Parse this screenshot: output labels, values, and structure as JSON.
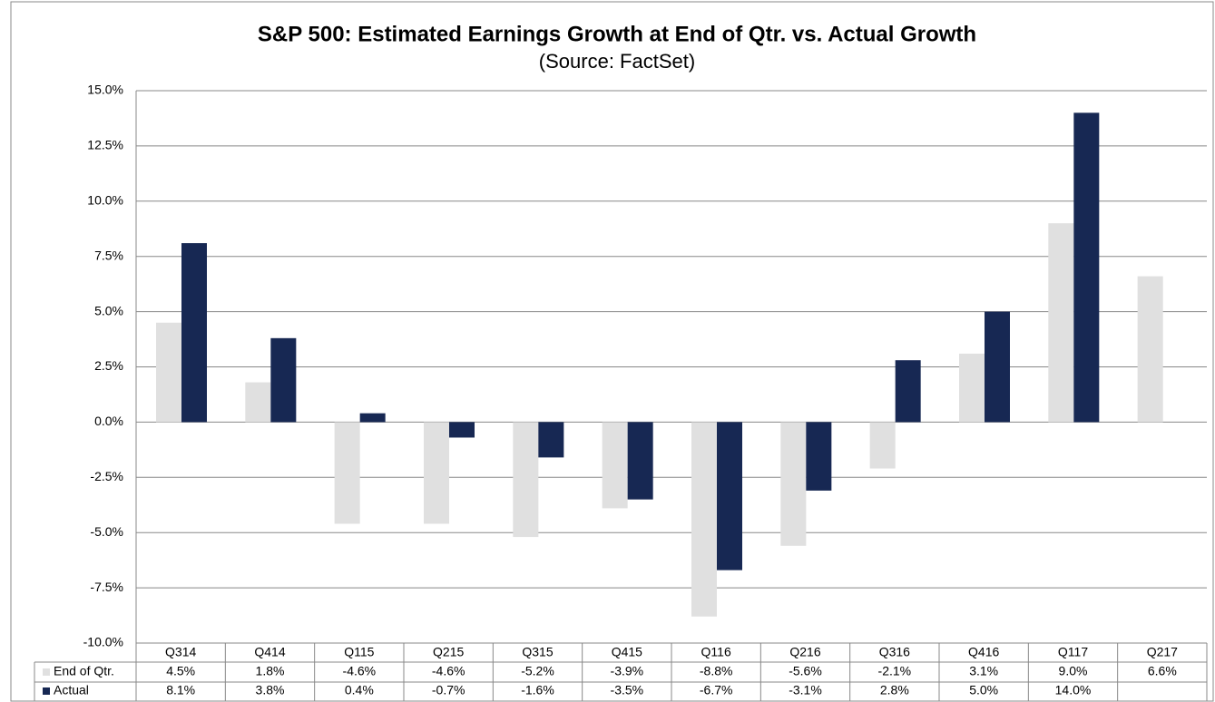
{
  "chart_data": {
    "type": "bar",
    "title": "S&P 500: Estimated Earnings Growth at End of Qtr. vs. Actual Growth",
    "subtitle": "(Source: FactSet)",
    "categories": [
      "Q314",
      "Q414",
      "Q115",
      "Q215",
      "Q315",
      "Q415",
      "Q116",
      "Q216",
      "Q316",
      "Q416",
      "Q117",
      "Q217"
    ],
    "series": [
      {
        "name": "End of Qtr.",
        "color": "#e0e0e0",
        "values": [
          4.5,
          1.8,
          -4.6,
          -4.6,
          -5.2,
          -3.9,
          -8.8,
          -5.6,
          -2.1,
          3.1,
          9.0,
          6.6
        ],
        "value_labels": [
          "4.5%",
          "1.8%",
          "-4.6%",
          "-4.6%",
          "-5.2%",
          "-3.9%",
          "-8.8%",
          "-5.6%",
          "-2.1%",
          "3.1%",
          "9.0%",
          "6.6%"
        ]
      },
      {
        "name": "Actual",
        "color": "#172853",
        "values": [
          8.1,
          3.8,
          0.4,
          -0.7,
          -1.6,
          -3.5,
          -6.7,
          -3.1,
          2.8,
          5.0,
          14.0,
          null
        ],
        "value_labels": [
          "8.1%",
          "3.8%",
          "0.4%",
          "-0.7%",
          "-1.6%",
          "-3.5%",
          "-6.7%",
          "-3.1%",
          "2.8%",
          "5.0%",
          "14.0%",
          null
        ]
      }
    ],
    "ylim": [
      -10,
      15
    ],
    "yticks": [
      {
        "value": 15,
        "label": "15.0%"
      },
      {
        "value": 12.5,
        "label": "12.5%"
      },
      {
        "value": 10,
        "label": "10.0%"
      },
      {
        "value": 7.5,
        "label": "7.5%"
      },
      {
        "value": 5,
        "label": "5.0%"
      },
      {
        "value": 2.5,
        "label": "2.5%"
      },
      {
        "value": 0,
        "label": "0.0%"
      },
      {
        "value": -2.5,
        "label": "-2.5%"
      },
      {
        "value": -5,
        "label": "-5.0%"
      },
      {
        "value": -7.5,
        "label": "-7.5%"
      },
      {
        "value": -10,
        "label": "-10.0%"
      }
    ],
    "grid": true
  }
}
